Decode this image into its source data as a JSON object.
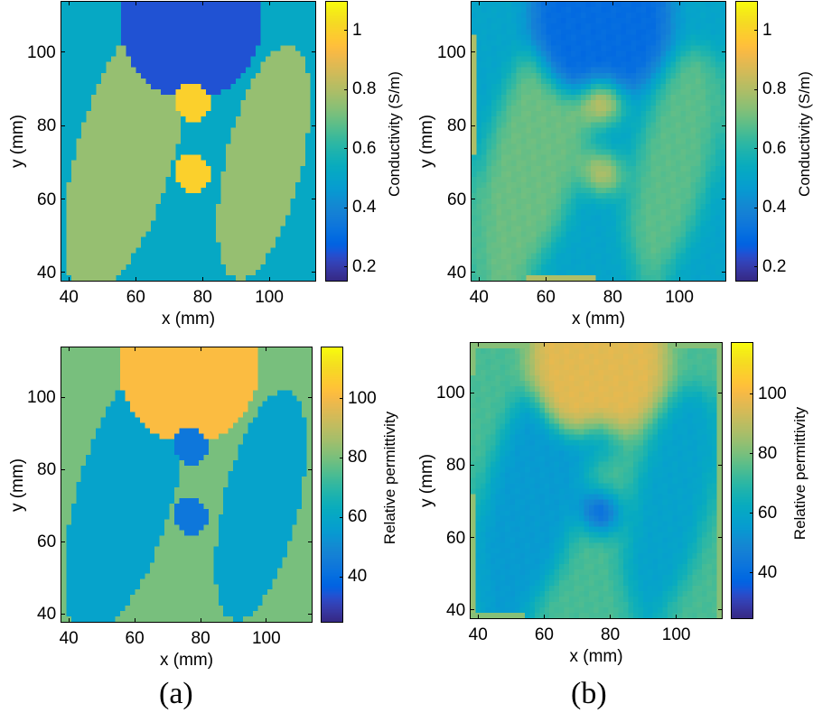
{
  "figure": {
    "sublabels": [
      "(a)",
      "(b)"
    ]
  },
  "chart_data": [
    {
      "id": "a-conductivity",
      "type": "heatmap",
      "title": "",
      "subfigure": "(a)",
      "description": "True phantom conductivity map",
      "xlabel": "x (mm)",
      "ylabel": "y (mm)",
      "xlim": [
        37.5,
        114
      ],
      "ylim": [
        37.5,
        114
      ],
      "xticks": [
        40,
        60,
        80,
        100
      ],
      "yticks": [
        40,
        60,
        80,
        100
      ],
      "colormap": "parula",
      "colorbar": {
        "label": "Conductivity (S/m)",
        "range": [
          0.15,
          1.1
        ],
        "ticks": [
          0.2,
          0.4,
          0.6,
          0.8,
          1
        ],
        "tick_labels": [
          "0.2",
          "0.4",
          "0.6",
          "0.8",
          "1"
        ]
      },
      "cell_mm": 1.5,
      "regions": {
        "background": 0.52,
        "left_lobe": 0.76,
        "right_lobe": 0.76,
        "top_cap": 0.24,
        "inclusion_upper": 1.0,
        "inclusion_lower": 1.0
      },
      "reconstructed": false
    },
    {
      "id": "b-conductivity",
      "type": "heatmap",
      "title": "",
      "subfigure": "(b)",
      "description": "Reconstructed conductivity map",
      "xlabel": "x (mm)",
      "ylabel": "y (mm)",
      "xlim": [
        37.5,
        114
      ],
      "ylim": [
        37.5,
        114
      ],
      "xticks": [
        40,
        60,
        80,
        100
      ],
      "yticks": [
        40,
        60,
        80,
        100
      ],
      "colormap": "parula",
      "colorbar": {
        "label": "Conductivity (S/m)",
        "range": [
          0.15,
          1.1
        ],
        "ticks": [
          0.2,
          0.4,
          0.6,
          0.8,
          1
        ],
        "tick_labels": [
          "0.2",
          "0.4",
          "0.6",
          "0.8",
          "1"
        ]
      },
      "cell_mm": 1.5,
      "regions": {
        "background": 0.5,
        "left_lobe": 0.7,
        "right_lobe": 0.68,
        "top_cap": 0.3,
        "inclusion_upper": 0.9,
        "inclusion_lower": 0.88
      },
      "blur_cells": 2,
      "edge_strips": [
        {
          "side": "left",
          "from": 72,
          "to": 105.5,
          "value": 0.8
        },
        {
          "side": "bottom",
          "from": 53.5,
          "to": 74.5,
          "value": 0.8
        }
      ],
      "reconstructed": true
    },
    {
      "id": "a-permittivity",
      "type": "heatmap",
      "title": "",
      "subfigure": "(a)",
      "description": "True phantom relative permittivity map",
      "xlabel": "x (mm)",
      "ylabel": "y (mm)",
      "xlim": [
        37.5,
        114
      ],
      "ylim": [
        37.5,
        114
      ],
      "xticks": [
        40,
        60,
        80,
        100
      ],
      "yticks": [
        40,
        60,
        80,
        100
      ],
      "colormap": "parula",
      "colorbar": {
        "label": "Relative permittivity",
        "range": [
          24.5,
          117.5
        ],
        "ticks": [
          40,
          60,
          80,
          100
        ],
        "tick_labels": [
          "40",
          "60",
          "80",
          "100"
        ]
      },
      "cell_mm": 1.5,
      "regions": {
        "background": 80,
        "left_lobe": 58,
        "right_lobe": 58,
        "top_cap": 102,
        "inclusion_upper": 43,
        "inclusion_lower": 43
      },
      "reconstructed": false
    },
    {
      "id": "b-permittivity",
      "type": "heatmap",
      "title": "",
      "subfigure": "(b)",
      "description": "Reconstructed relative permittivity map",
      "xlabel": "x (mm)",
      "ylabel": "y (mm)",
      "xlim": [
        37.5,
        114
      ],
      "ylim": [
        37.5,
        114
      ],
      "xticks": [
        40,
        60,
        80,
        100
      ],
      "yticks": [
        40,
        60,
        80,
        100
      ],
      "colormap": "parula",
      "colorbar": {
        "label": "Relative permittivity",
        "range": [
          24.5,
          117.5
        ],
        "ticks": [
          40,
          60,
          80,
          100
        ],
        "tick_labels": [
          "40",
          "60",
          "80",
          "100"
        ]
      },
      "cell_mm": 1.5,
      "regions": {
        "background": 74,
        "left_lobe": 55,
        "right_lobe": 58,
        "top_cap": 97,
        "inclusion_upper": 60,
        "inclusion_lower": 32
      },
      "blur_cells": 2,
      "edge_strips": [
        {
          "side": "top",
          "from": 37.5,
          "to": 56,
          "value": 82
        },
        {
          "side": "top",
          "from": 97,
          "to": 114,
          "value": 82
        },
        {
          "side": "left",
          "from": 37.5,
          "to": 72,
          "value": 84
        },
        {
          "side": "left",
          "from": 105.5,
          "to": 114,
          "value": 82
        },
        {
          "side": "bottom",
          "from": 37.5,
          "to": 53.5,
          "value": 82
        },
        {
          "side": "right",
          "from": 37.5,
          "to": 114,
          "value": 82
        }
      ],
      "reconstructed": true
    }
  ]
}
